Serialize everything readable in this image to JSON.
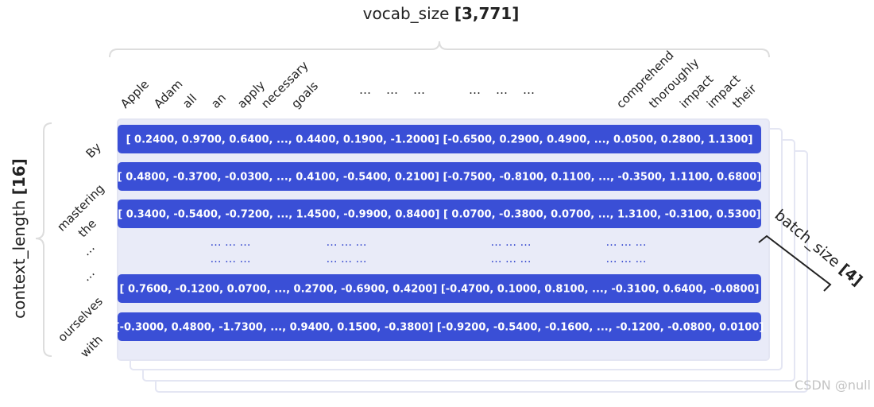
{
  "vocab_label": {
    "name": "vocab_size",
    "size": "[3,771]"
  },
  "columns": [
    "Apple",
    "Adam",
    "all",
    "an",
    "apply",
    "necessary",
    "goals",
    "…",
    "…",
    "…",
    "…",
    "…",
    "…",
    "comprehend",
    "thoroughly",
    "impact",
    "impact",
    "their"
  ],
  "context_label": {
    "name": "context_length",
    "size": "[16]"
  },
  "row_labels": [
    "By",
    "mastering",
    "the",
    "…",
    "…",
    "ourselves",
    "with"
  ],
  "rows": [
    "[ 0.2400,  0.9700,  0.6400,  ...,  0.4400,  0.1900, -1.2000] [-0.6500,  0.2900,  0.4900,  ...,  0.0500,  0.2800,  1.1300]",
    "[ 0.4800, -0.3700, -0.0300,  ...,  0.4100, -0.5400,  0.2100] [-0.7500, -0.8100,  0.1100,  ..., -0.3500,  1.1100,  0.6800]",
    "[ 0.3400, -0.5400, -0.7200,  ...,  1.4500, -0.9900,  0.8400] [ 0.0700, -0.3800,  0.0700,  ...,  1.3100, -0.3100,  0.5300]",
    "[ 0.7600, -0.1200,  0.0700,  ...,  0.2700, -0.6900,  0.4200] [-0.4700,  0.1000,  0.8100,  ..., -0.3100,  0.6400, -0.0800]",
    "[-0.3000,  0.4800, -1.7300,  ...,  0.9400,  0.1500, -0.3800] [-0.9200, -0.5400, -0.1600,  ..., -0.1200, -0.0800,  0.0100]"
  ],
  "ellipsis_rows": [
    [
      "… … …",
      "… … …",
      "… … …",
      "… … …"
    ],
    [
      "… … …",
      "… … …",
      "… … …",
      "… … …"
    ]
  ],
  "batch_label": {
    "name": "batch_size",
    "size": "[4]"
  },
  "watermark": "CSDN @null"
}
